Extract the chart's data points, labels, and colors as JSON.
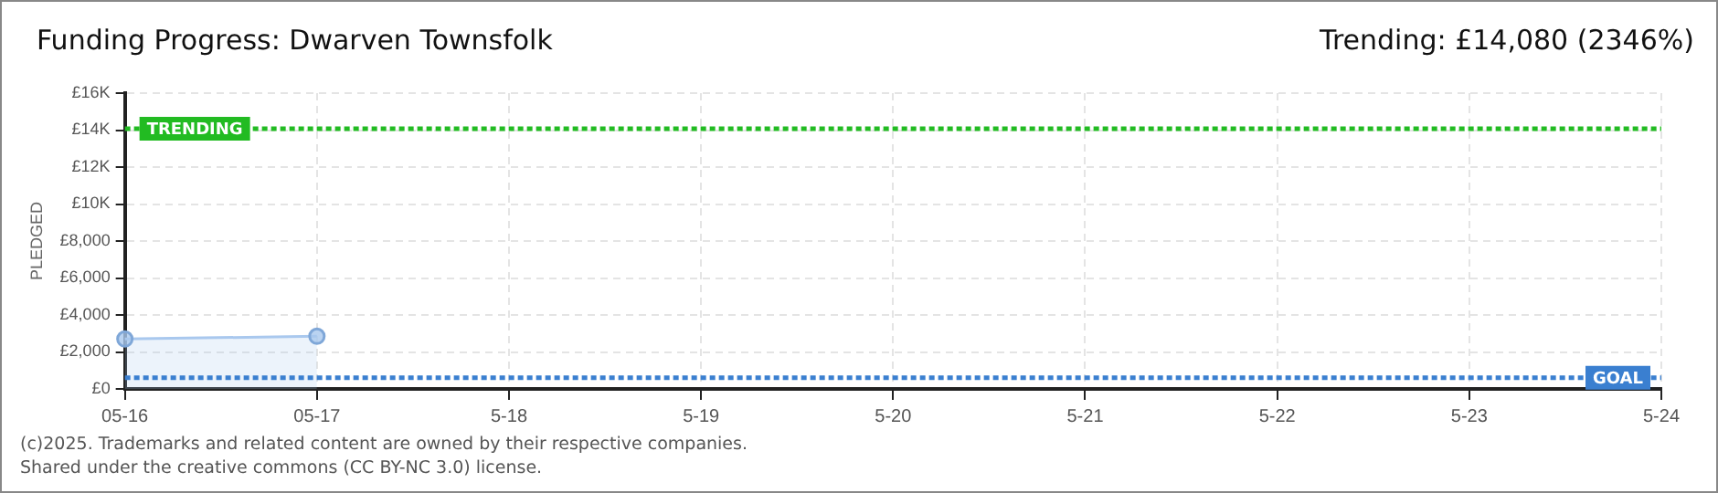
{
  "chart_data": {
    "type": "area",
    "title": "Funding Progress: Dwarven Townsfolk",
    "subtitle": "Trending:  £14,080 (2346%)",
    "ylabel": "PLEDGED",
    "categories": [
      "05-16",
      "05-17",
      "5-18",
      "5-19",
      "5-20",
      "5-21",
      "5-22",
      "5-23",
      "5-24"
    ],
    "series": [
      {
        "color": "#a9c8ee",
        "values": [
          2700,
          2850,
          null,
          null,
          null,
          null,
          null,
          null,
          null
        ]
      }
    ],
    "ylim": [
      0,
      16000
    ],
    "yticks": [
      {
        "value": 0,
        "label": "£0"
      },
      {
        "value": 2000,
        "label": "£2,000"
      },
      {
        "value": 4000,
        "label": "£4,000"
      },
      {
        "value": 6000,
        "label": "£6,000"
      },
      {
        "value": 8000,
        "label": "£8,000"
      },
      {
        "value": 10000,
        "label": "£10K"
      },
      {
        "value": 12000,
        "label": "£12K"
      },
      {
        "value": 14000,
        "label": "£14K"
      },
      {
        "value": 16000,
        "label": "£16K"
      }
    ],
    "ref_lines": [
      {
        "axis": "y",
        "value": 14080,
        "label": "TRENDING",
        "color": "#22bb22",
        "line_style": "dotted"
      },
      {
        "axis": "y",
        "value": 600,
        "label": "GOAL",
        "color": "#3a7fd0",
        "line_style": "dotted"
      }
    ],
    "grid": true,
    "legend": false,
    "marker": "circle",
    "annotations": [
      "(c)2025. Trademarks and related content are owned by their respective companies.",
      "Shared under the creative commons (CC BY-NC 3.0) license."
    ]
  }
}
